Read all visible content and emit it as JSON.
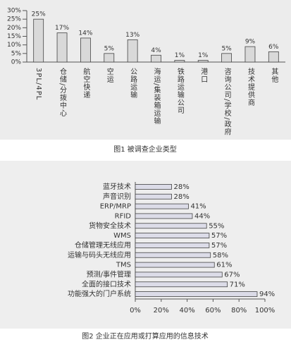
{
  "chart_data": [
    {
      "type": "bar",
      "caption": "图1   被调查企业类型",
      "categories": [
        "3PL/4PL",
        "仓储/分拨中心",
        "航空快递",
        "空运",
        "公路运输",
        "海运/集装箱运输",
        "铁路运输公司",
        "港口",
        "咨询公司/学校/政府",
        "技术提供商",
        "其他"
      ],
      "values": [
        25,
        17,
        14,
        5,
        13,
        4,
        1,
        1,
        5,
        9,
        6
      ],
      "value_labels": [
        "25%",
        "17%",
        "14%",
        "5%",
        "13%",
        "4%",
        "1%",
        "1%",
        "5%",
        "9%",
        "6%"
      ],
      "color": "#d9d9d9",
      "ylim": [
        0,
        30
      ],
      "yticks": [
        {
          "value": 0,
          "label": "0%"
        },
        {
          "value": 5,
          "label": "5%"
        },
        {
          "value": 10,
          "label": "10%"
        },
        {
          "value": 15,
          "label": "15%"
        },
        {
          "value": 20,
          "label": "20%"
        },
        {
          "value": 25,
          "label": "25%"
        },
        {
          "value": 30,
          "label": "30%"
        }
      ]
    },
    {
      "type": "barh",
      "caption": "图2   企业正在应用或打算应用的信息技术",
      "categories": [
        "蓝牙技术",
        "声音识别",
        "ERP/MRP",
        "RFID",
        "货物安全技术",
        "WMS",
        "仓储管理无线应用",
        "运输与码头无线应用",
        "TMS",
        "预测/事件管理",
        "全面的接口技术",
        "功能强大的门户系统"
      ],
      "values": [
        28,
        28,
        41,
        44,
        55,
        57,
        57,
        58,
        61,
        67,
        71,
        94
      ],
      "value_labels": [
        "28%",
        "28%",
        "41%",
        "44%",
        "55%",
        "57%",
        "57%",
        "58%",
        "61%",
        "67%",
        "71%",
        "94%"
      ],
      "color": "#dcdce8",
      "xlim": [
        0,
        100
      ],
      "xticks": [
        {
          "value": 0,
          "label": "0%"
        },
        {
          "value": 20,
          "label": "20%"
        },
        {
          "value": 40,
          "label": "40%"
        },
        {
          "value": 60,
          "label": "60%"
        },
        {
          "value": 80,
          "label": "80%"
        },
        {
          "value": 100,
          "label": "100%"
        }
      ]
    }
  ]
}
